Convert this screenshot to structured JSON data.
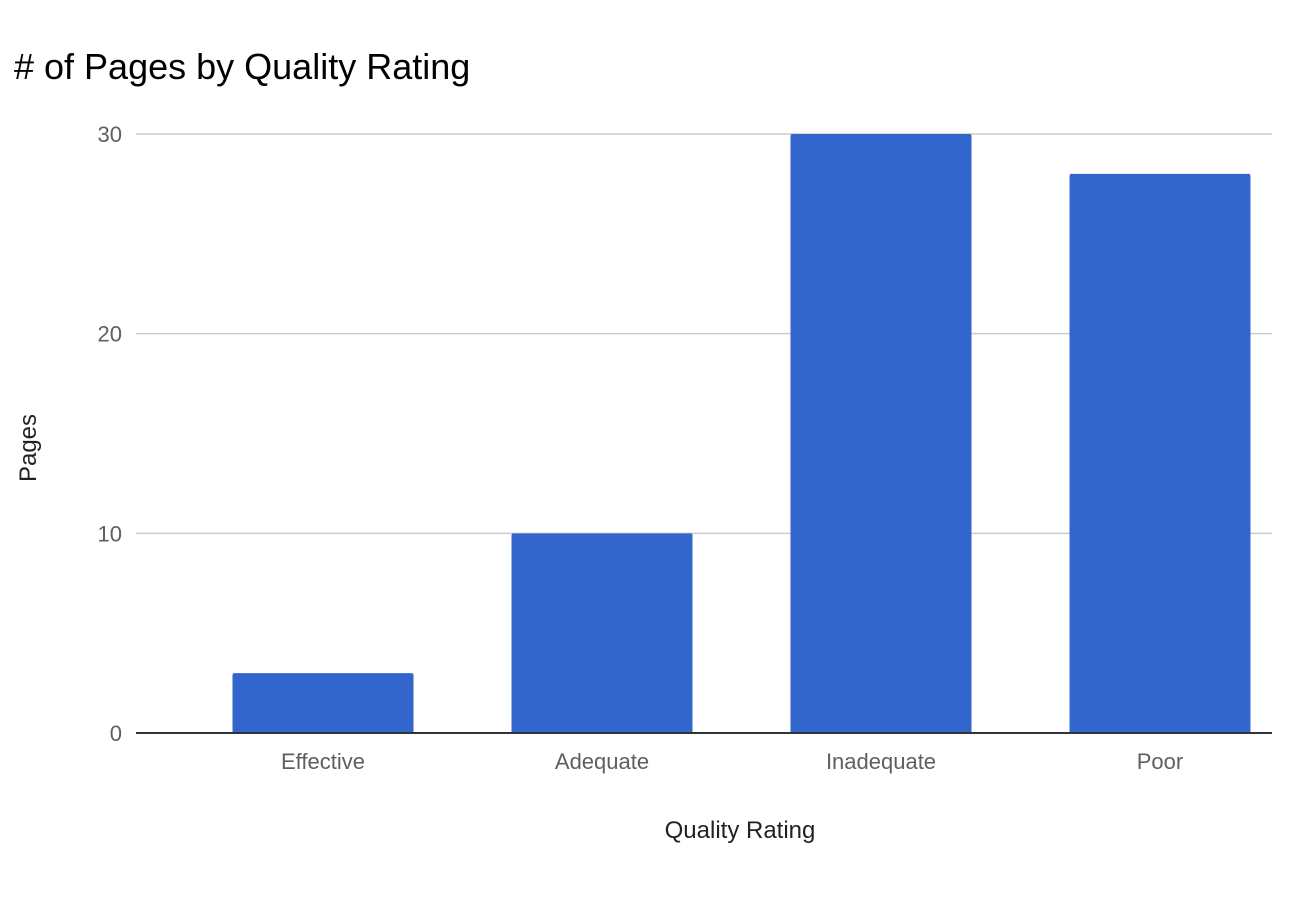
{
  "chart_data": {
    "type": "bar",
    "title": "# of Pages by Quality Rating",
    "xlabel": "Quality Rating",
    "ylabel": "Pages",
    "categories": [
      "Effective",
      "Adequate",
      "Inadequate",
      "Poor"
    ],
    "values": [
      3,
      10,
      30,
      28
    ],
    "ylim": [
      0,
      30
    ],
    "yticks": [
      "0",
      "10",
      "20",
      "30"
    ],
    "grid": true,
    "bar_color": "#3366cc",
    "gridline_color": "#cccccc",
    "baseline_color": "#333333"
  }
}
